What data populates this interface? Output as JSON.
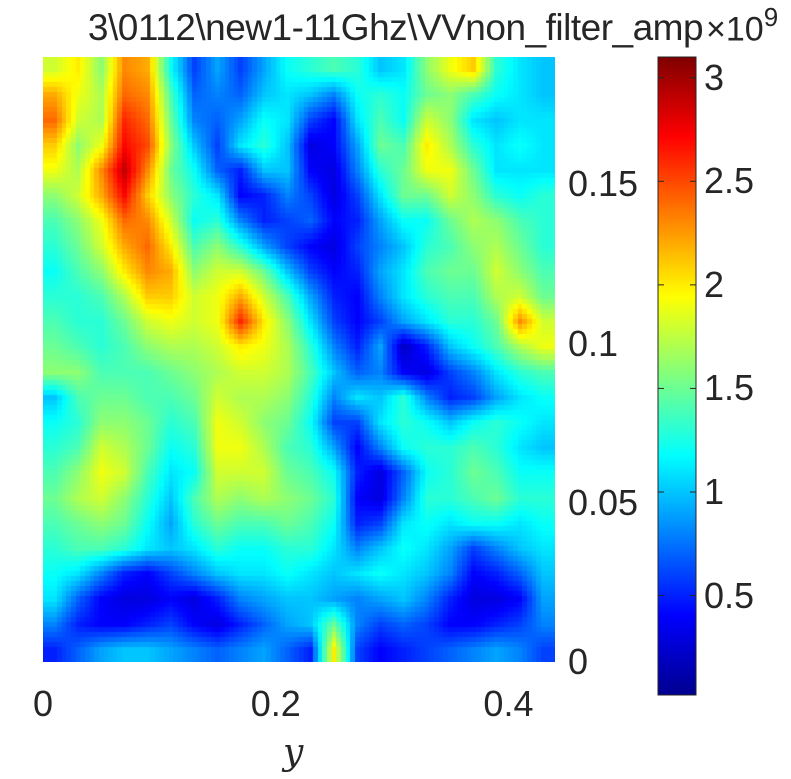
{
  "title": "3\\0112\\new1-11Ghz\\VVnon_filter_amp",
  "chart_data": {
    "type": "heatmap",
    "title": "3\\0112\\new1-11Ghz\\VVnon_filter_amp",
    "xlabel": "y",
    "ylabel": "",
    "xlim": [
      0,
      0.44
    ],
    "ylim": [
      0,
      0.19
    ],
    "x_ticks": [
      "0",
      "0.2",
      "0.4"
    ],
    "y_ticks": [
      "0",
      "0.05",
      "0.1",
      "0.15"
    ],
    "y_axis_side": "right",
    "colormap": "jet",
    "colorbar": {
      "clim": [
        0.02,
        3.1
      ],
      "ticks": [
        "0.5",
        "1",
        "1.5",
        "2",
        "2.5",
        "3"
      ],
      "exponent_base": "×10",
      "exponent_power": "9"
    },
    "grid_rows_top_to_bottom": [
      [
        1.8,
        2.0,
        1.6,
        2.3,
        2.2,
        1.2,
        0.6,
        0.9,
        0.6,
        0.9,
        1.2,
        1.3,
        1.4,
        1.3,
        1.0,
        1.1,
        1.6,
        1.9,
        2.1,
        1.3,
        1.1,
        1.0
      ],
      [
        2.2,
        1.9,
        1.7,
        2.4,
        2.3,
        1.4,
        0.7,
        0.8,
        0.7,
        1.0,
        1.1,
        1.0,
        0.8,
        1.2,
        1.3,
        1.2,
        1.5,
        1.6,
        1.4,
        1.2,
        1.1,
        1.0
      ],
      [
        2.4,
        1.8,
        1.7,
        2.6,
        2.4,
        1.5,
        0.8,
        0.7,
        0.9,
        1.2,
        1.1,
        0.6,
        0.4,
        1.1,
        1.4,
        1.2,
        1.8,
        1.6,
        1.1,
        1.0,
        1.1,
        1.1
      ],
      [
        2.1,
        1.6,
        1.9,
        2.7,
        2.5,
        1.6,
        1.0,
        0.6,
        1.1,
        1.3,
        1.0,
        0.3,
        0.4,
        0.9,
        1.5,
        1.4,
        2.0,
        1.7,
        1.3,
        1.1,
        1.2,
        1.1
      ],
      [
        1.9,
        1.7,
        2.3,
        2.9,
        2.3,
        1.5,
        1.2,
        0.7,
        0.5,
        1.0,
        1.0,
        0.4,
        0.3,
        0.8,
        1.3,
        1.5,
        1.9,
        1.9,
        1.5,
        1.1,
        1.1,
        1.1
      ],
      [
        1.6,
        1.8,
        2.2,
        2.7,
        2.1,
        1.6,
        1.3,
        1.1,
        0.4,
        0.5,
        0.8,
        0.6,
        0.3,
        0.6,
        1.1,
        1.5,
        1.5,
        1.8,
        1.6,
        1.3,
        1.2,
        1.3
      ],
      [
        1.4,
        1.6,
        1.9,
        2.4,
        2.3,
        1.8,
        1.2,
        1.3,
        0.8,
        0.5,
        0.6,
        0.7,
        0.4,
        0.5,
        0.9,
        1.2,
        1.2,
        1.5,
        1.7,
        1.6,
        1.4,
        1.3
      ],
      [
        1.3,
        1.5,
        1.8,
        2.2,
        2.4,
        2.0,
        1.4,
        1.6,
        1.3,
        0.9,
        0.6,
        0.4,
        0.3,
        0.6,
        0.8,
        1.0,
        1.3,
        1.4,
        1.6,
        1.7,
        1.5,
        1.3
      ],
      [
        1.2,
        1.4,
        1.6,
        2.0,
        2.3,
        2.2,
        1.6,
        1.8,
        1.8,
        1.5,
        1.0,
        0.6,
        0.4,
        0.5,
        0.9,
        1.1,
        1.4,
        1.5,
        1.5,
        1.8,
        1.6,
        1.4
      ],
      [
        1.3,
        1.3,
        1.4,
        1.7,
        2.1,
        2.1,
        1.8,
        1.9,
        2.2,
        1.8,
        1.4,
        0.9,
        0.5,
        0.4,
        0.8,
        1.1,
        1.3,
        1.4,
        1.4,
        1.7,
        1.8,
        1.5
      ],
      [
        1.4,
        1.3,
        1.3,
        1.5,
        1.8,
        1.9,
        1.8,
        1.9,
        2.6,
        2.0,
        1.6,
        1.1,
        0.6,
        0.4,
        0.6,
        0.9,
        1.1,
        1.3,
        1.3,
        1.5,
        2.3,
        1.8
      ],
      [
        1.5,
        1.4,
        1.3,
        1.4,
        1.6,
        1.7,
        1.7,
        1.8,
        2.0,
        1.9,
        1.7,
        1.3,
        0.8,
        0.5,
        0.9,
        0.2,
        0.5,
        1.0,
        1.2,
        1.4,
        1.7,
        1.9
      ],
      [
        1.6,
        1.6,
        1.4,
        1.4,
        1.4,
        1.5,
        1.6,
        1.7,
        1.8,
        1.8,
        1.7,
        1.4,
        1.0,
        0.7,
        0.8,
        0.4,
        0.3,
        0.6,
        0.8,
        1.1,
        1.3,
        1.4
      ],
      [
        1.0,
        1.4,
        1.5,
        1.5,
        1.4,
        1.4,
        1.5,
        1.8,
        1.7,
        1.7,
        1.6,
        1.3,
        0.8,
        1.1,
        1.0,
        1.3,
        0.8,
        0.5,
        0.6,
        0.9,
        1.1,
        1.2
      ],
      [
        1.2,
        1.3,
        1.6,
        1.6,
        1.5,
        1.3,
        1.4,
        1.9,
        1.8,
        1.6,
        1.5,
        1.2,
        0.6,
        0.6,
        1.1,
        1.3,
        1.2,
        1.0,
        1.2,
        1.3,
        1.2,
        1.1
      ],
      [
        1.3,
        1.4,
        1.8,
        1.7,
        1.5,
        1.2,
        1.3,
        1.9,
        1.9,
        1.7,
        1.4,
        1.3,
        0.9,
        0.4,
        0.8,
        1.2,
        1.3,
        1.3,
        1.4,
        1.3,
        1.1,
        1.0
      ],
      [
        1.4,
        1.6,
        1.9,
        1.8,
        1.4,
        1.1,
        1.2,
        1.8,
        1.8,
        1.8,
        1.5,
        1.4,
        1.2,
        0.5,
        0.3,
        0.7,
        1.2,
        1.3,
        1.5,
        1.4,
        1.2,
        1.2
      ],
      [
        1.5,
        1.7,
        1.8,
        1.6,
        1.3,
        1.0,
        1.4,
        1.7,
        1.6,
        1.7,
        1.6,
        1.5,
        1.3,
        0.4,
        0.3,
        0.8,
        1.3,
        1.3,
        1.4,
        1.5,
        1.3,
        1.3
      ],
      [
        1.4,
        1.5,
        1.6,
        1.5,
        1.2,
        0.9,
        1.3,
        1.5,
        1.4,
        1.4,
        1.5,
        1.4,
        1.2,
        0.5,
        0.6,
        1.1,
        1.2,
        1.1,
        1.2,
        1.2,
        1.1,
        1.2
      ],
      [
        1.3,
        1.4,
        1.4,
        1.3,
        1.1,
        1.0,
        1.1,
        1.3,
        1.2,
        1.2,
        1.3,
        1.3,
        1.1,
        0.8,
        1.0,
        1.2,
        1.1,
        0.9,
        0.6,
        0.8,
        1.0,
        1.1
      ],
      [
        1.2,
        1.1,
        0.8,
        0.5,
        0.4,
        0.6,
        0.8,
        1.0,
        1.1,
        1.1,
        1.2,
        1.1,
        1.0,
        1.1,
        1.2,
        1.1,
        1.0,
        0.8,
        0.4,
        0.5,
        0.7,
        1.0
      ],
      [
        1.1,
        0.7,
        0.4,
        0.3,
        0.3,
        0.4,
        0.3,
        0.5,
        0.8,
        0.9,
        1.0,
        1.0,
        0.9,
        0.8,
        0.9,
        1.0,
        0.8,
        0.5,
        0.3,
        0.3,
        0.4,
        0.9
      ],
      [
        0.8,
        0.5,
        0.4,
        0.4,
        0.5,
        0.6,
        0.4,
        0.3,
        0.5,
        0.7,
        0.9,
        1.0,
        1.5,
        0.8,
        0.6,
        0.7,
        0.6,
        0.4,
        0.4,
        0.5,
        0.6,
        0.8
      ],
      [
        0.5,
        0.7,
        0.9,
        1.0,
        1.0,
        0.9,
        0.8,
        0.7,
        0.8,
        0.9,
        0.7,
        0.5,
        2.0,
        0.6,
        0.4,
        0.5,
        0.6,
        0.7,
        0.8,
        0.9,
        0.8,
        0.6
      ]
    ]
  }
}
